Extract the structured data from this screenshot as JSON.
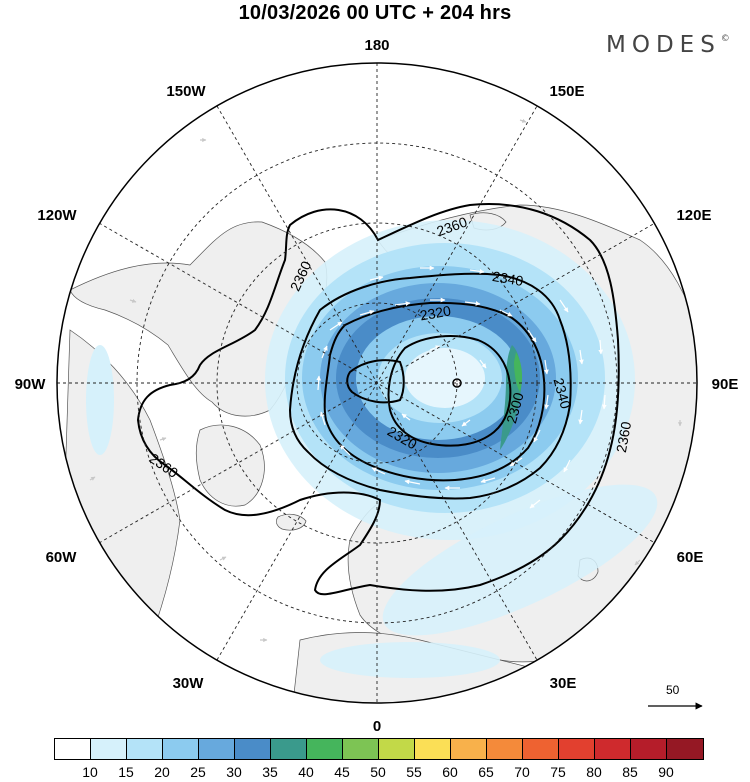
{
  "title": "10/03/2026  00 UTC  + 204 hrs",
  "brand": {
    "text": "MODES",
    "mark": "©"
  },
  "lon_labels": {
    "top": "180",
    "bottom": "0",
    "left": "90W",
    "right": "90E",
    "upper_left_1": "150W",
    "upper_left_2": "120W",
    "upper_right_1": "150E",
    "upper_right_2": "120E",
    "lower_left_1": "60W",
    "lower_left_2": "30W",
    "lower_right_1": "60E",
    "lower_right_2": "30E"
  },
  "contour_labels": [
    "2360",
    "2360",
    "2360",
    "2360",
    "2340",
    "2340",
    "2320",
    "2320",
    "2300"
  ],
  "reference_vector": {
    "label": "50"
  },
  "colorbar": {
    "colors": [
      "#ffffff",
      "#d6f1fb",
      "#b4e3f8",
      "#8ccbef",
      "#67a9dd",
      "#4a8cc8",
      "#3a9a8c",
      "#45b55c",
      "#7dc454",
      "#c2d948",
      "#fbdf56",
      "#f8b14b",
      "#f48a3a",
      "#ee6231",
      "#e2402f",
      "#cf2a2d",
      "#b51d2a",
      "#951824"
    ],
    "labels": [
      "10",
      "15",
      "20",
      "25",
      "30",
      "35",
      "40",
      "45",
      "50",
      "55",
      "60",
      "65",
      "70",
      "75",
      "80",
      "85",
      "90"
    ]
  }
}
